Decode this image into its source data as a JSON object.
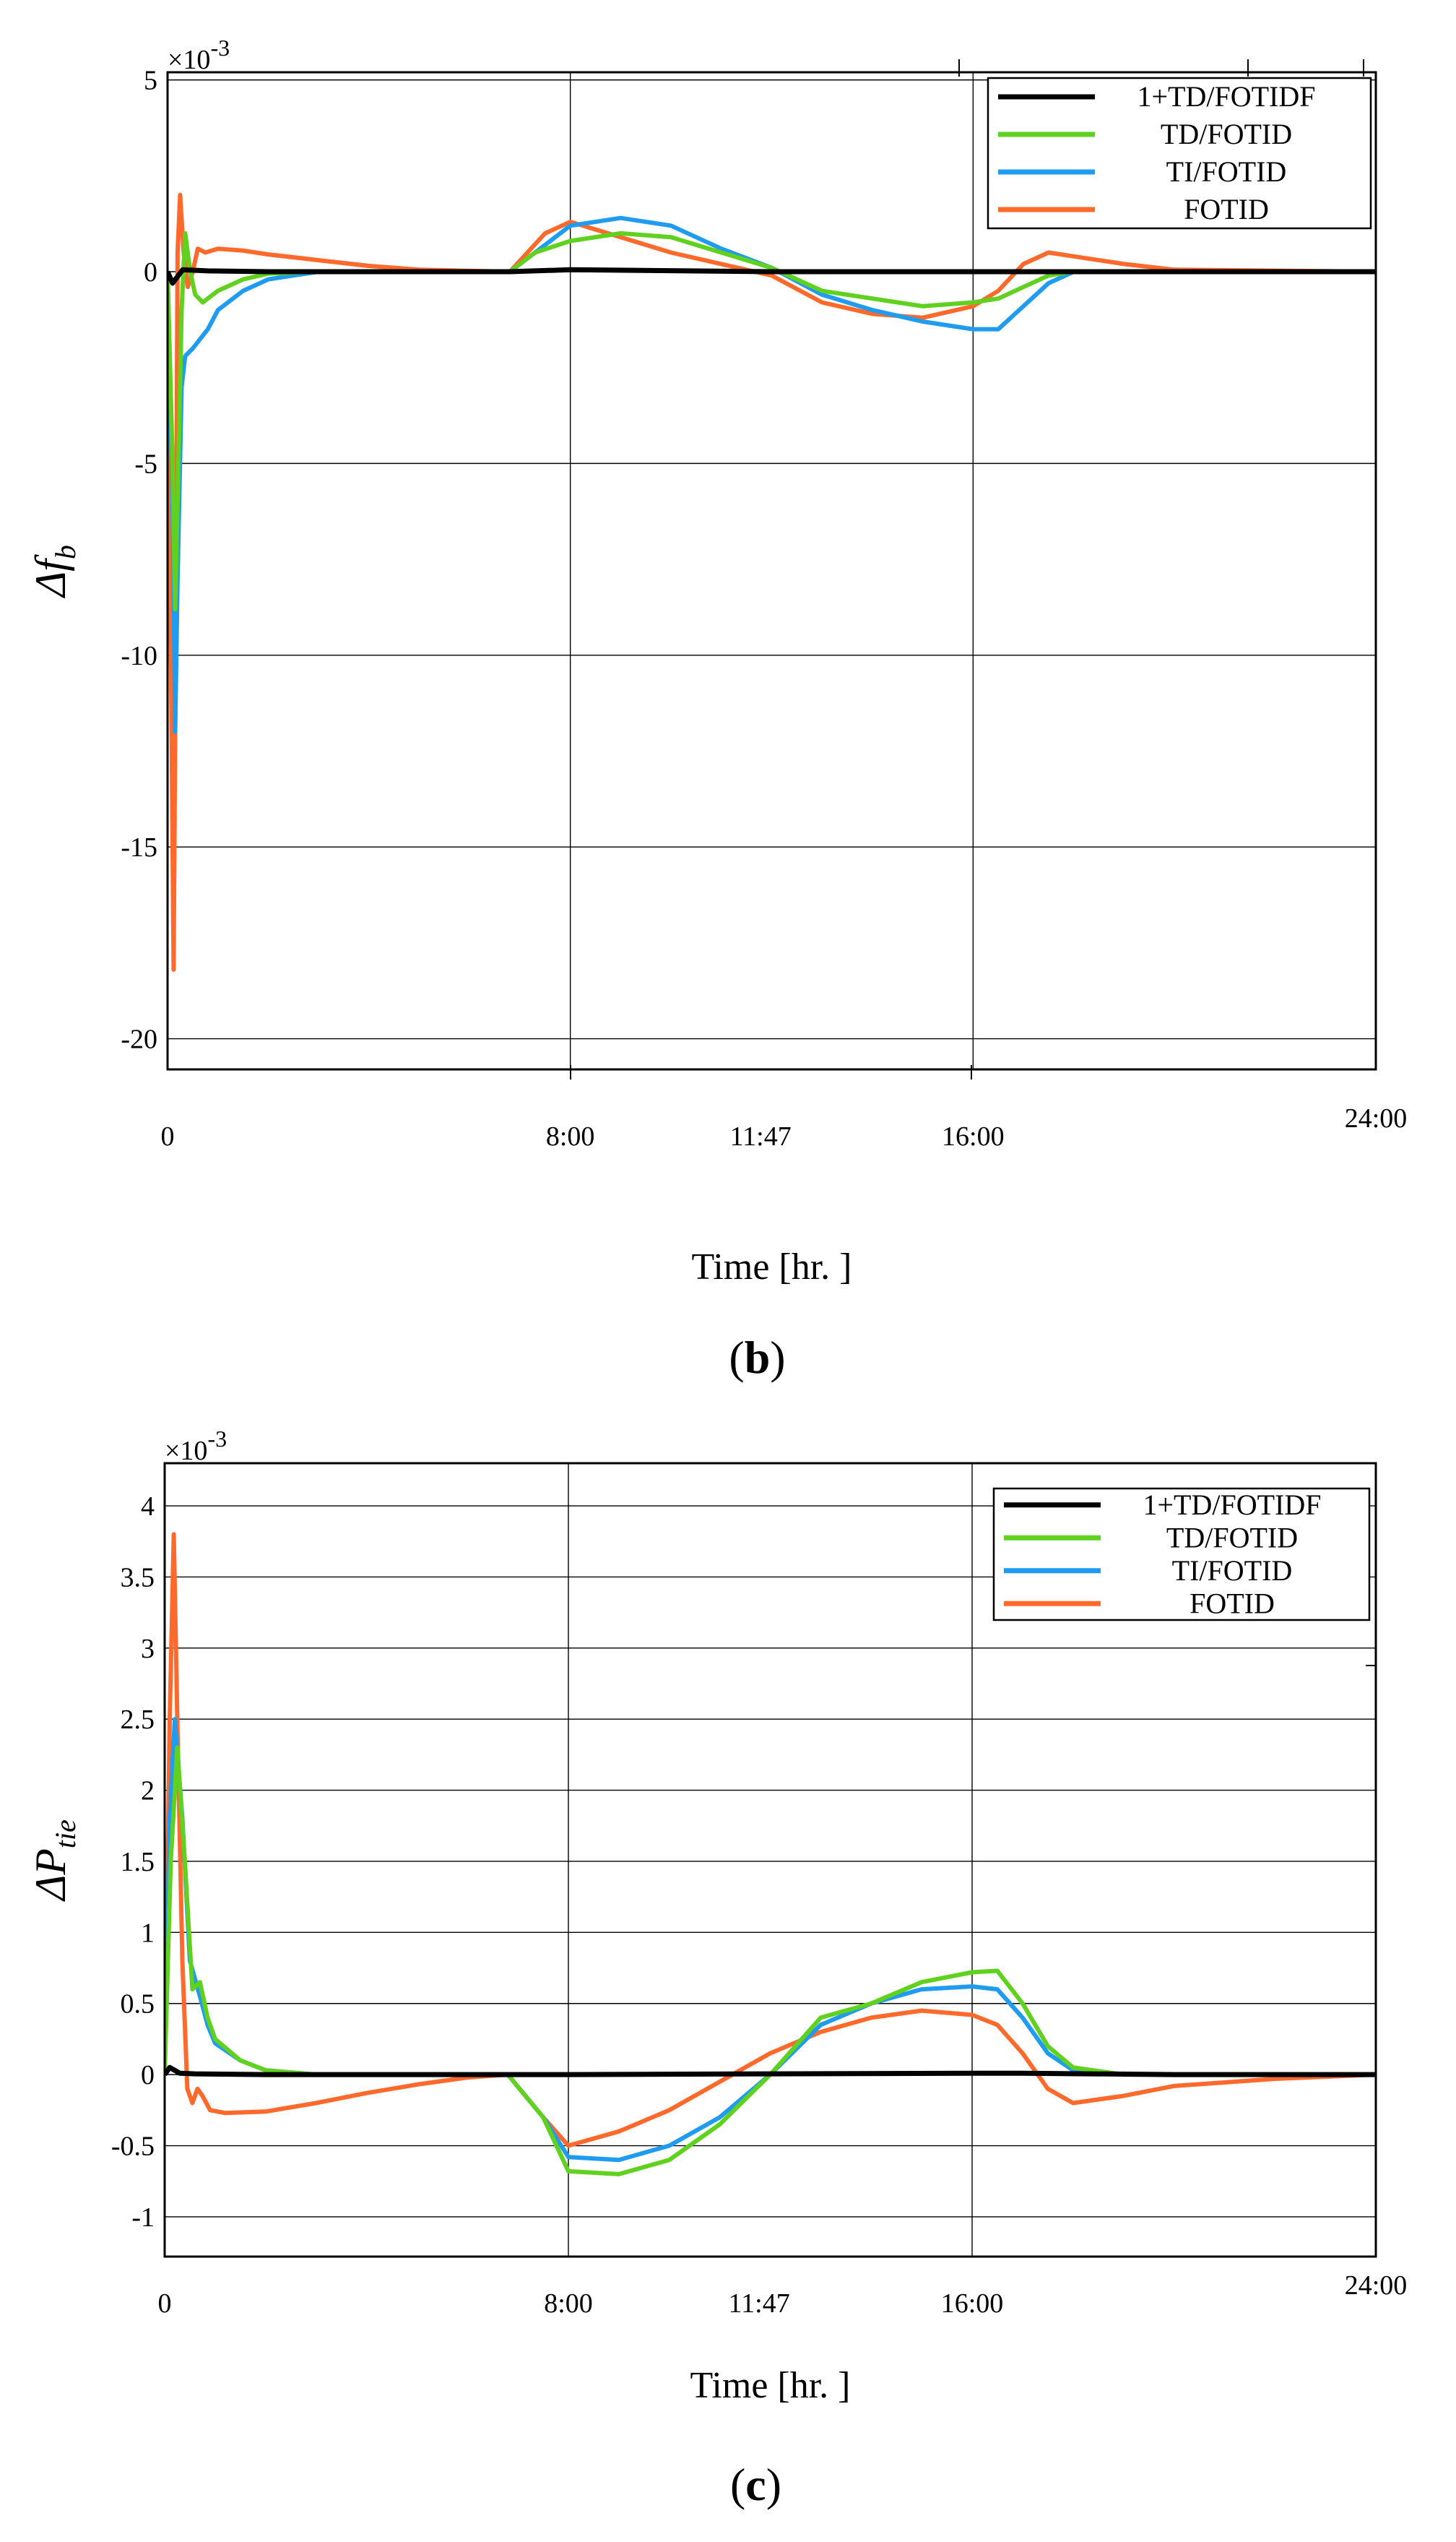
{
  "colors": {
    "1+TD/FOTIDF": "#000000",
    "TD/FOTID": "#5fd11e",
    "TI/FOTID": "#1f9bf0",
    "FOTID": "#ff6a2c"
  },
  "chart_data": [
    {
      "type": "line",
      "panel": "(b)",
      "caption_letter": "b",
      "ylabel_main": "Δf",
      "ylabel_sub": "b",
      "xlabel": "Time [hr. ]",
      "exponent_label": "×10",
      "exponent_power": "-3",
      "xlim": [
        0,
        24
      ],
      "ylim": [
        -20.8,
        5.2
      ],
      "yticks": [
        5,
        0,
        -5,
        -10,
        -15,
        -20
      ],
      "ytick_labels": [
        "5",
        "0",
        "-5",
        "-10",
        "-15",
        "-20"
      ],
      "xticks": [
        0,
        8,
        11.78,
        16,
        24
      ],
      "xtick_labels": [
        "0",
        "8:00",
        "11:47",
        "16:00",
        "24:00"
      ],
      "xgrid": [
        8,
        16
      ],
      "grid": true,
      "legend_position": "top-right",
      "legend": [
        "1+TD/FOTIDF",
        "TD/FOTID",
        "TI/FOTID",
        "FOTID"
      ],
      "series": [
        {
          "name": "1+TD/FOTIDF",
          "x": [
            0,
            0.1,
            0.3,
            0.8,
            2,
            6.8,
            8,
            12,
            16,
            17,
            20,
            24
          ],
          "y": [
            0,
            -0.3,
            0.05,
            0.02,
            0,
            0,
            0.05,
            0,
            0,
            0,
            0,
            0
          ]
        },
        {
          "name": "TD/FOTID",
          "x": [
            0,
            0.1,
            0.15,
            0.2,
            0.28,
            0.35,
            0.45,
            0.55,
            0.7,
            1,
            1.5,
            2,
            3,
            6.8,
            7.3,
            8,
            9,
            10,
            11,
            12,
            13,
            14,
            15,
            16,
            16.5,
            17,
            17.5,
            18,
            19,
            24
          ],
          "y": [
            0,
            -5,
            -8.8,
            -6,
            -1,
            1,
            0,
            -0.6,
            -0.8,
            -0.5,
            -0.2,
            -0.05,
            0,
            0,
            0.5,
            0.8,
            1,
            0.9,
            0.5,
            0.1,
            -0.5,
            -0.7,
            -0.9,
            -0.8,
            -0.7,
            -0.4,
            -0.1,
            0,
            0,
            0
          ]
        },
        {
          "name": "TI/FOTID",
          "x": [
            0,
            0.1,
            0.15,
            0.2,
            0.28,
            0.35,
            0.5,
            0.8,
            1,
            1.5,
            2,
            3,
            6.8,
            7.3,
            8,
            9,
            10,
            11,
            12,
            13,
            14,
            15,
            16,
            16.5,
            17,
            17.5,
            18,
            19,
            24
          ],
          "y": [
            0,
            -6,
            -12,
            -8,
            -3,
            -2.2,
            -2,
            -1.5,
            -1,
            -0.5,
            -0.2,
            0,
            0,
            0.5,
            1.2,
            1.4,
            1.2,
            0.6,
            0.1,
            -0.6,
            -1,
            -1.3,
            -1.5,
            -1.5,
            -0.9,
            -0.3,
            0,
            0,
            0
          ]
        },
        {
          "name": "FOTID",
          "x": [
            0,
            0.08,
            0.12,
            0.16,
            0.2,
            0.25,
            0.32,
            0.4,
            0.5,
            0.6,
            0.75,
            1,
            1.5,
            2,
            3,
            4,
            5,
            6.8,
            7.5,
            8,
            9,
            10,
            11,
            12,
            13,
            14,
            15,
            16,
            16.5,
            17,
            17.5,
            18,
            19,
            20,
            24
          ],
          "y": [
            0,
            -12,
            -18.2,
            -10,
            0.5,
            2,
            0.5,
            -0.4,
            0,
            0.6,
            0.5,
            0.6,
            0.55,
            0.45,
            0.3,
            0.15,
            0.05,
            0,
            1,
            1.3,
            0.9,
            0.5,
            0.2,
            -0.1,
            -0.8,
            -1.1,
            -1.2,
            -0.9,
            -0.5,
            0.2,
            0.5,
            0.4,
            0.2,
            0.05,
            0
          ]
        }
      ]
    },
    {
      "type": "line",
      "panel": "(c)",
      "caption_letter": "c",
      "ylabel_main": "ΔP",
      "ylabel_sub": "tie",
      "xlabel": "Time [hr. ]",
      "exponent_label": "×10",
      "exponent_power": "-3",
      "xlim": [
        0,
        24
      ],
      "ylim": [
        -1.28,
        4.3
      ],
      "yticks": [
        4,
        3.5,
        3,
        2.5,
        2,
        1.5,
        1,
        0.5,
        0,
        -0.5,
        -1
      ],
      "ytick_labels": [
        "4",
        "3.5",
        "3",
        "2.5",
        "2",
        "1.5",
        "1",
        "0.5",
        "0",
        "-0.5",
        "-1"
      ],
      "xticks": [
        0,
        8,
        11.78,
        16,
        24
      ],
      "xtick_labels": [
        "0",
        "8:00",
        "11:47",
        "16:00",
        "24:00"
      ],
      "xgrid": [
        8,
        16
      ],
      "grid": true,
      "legend_position": "top-right",
      "legend": [
        "1+TD/FOTIDF",
        "TD/FOTID",
        "TI/FOTID",
        "FOTID"
      ],
      "series": [
        {
          "name": "1+TD/FOTIDF",
          "x": [
            0,
            0.1,
            0.3,
            0.6,
            2,
            6.8,
            8,
            12,
            16,
            17,
            20,
            24
          ],
          "y": [
            0,
            0.05,
            0.01,
            0.005,
            0,
            0,
            0,
            0.005,
            0.01,
            0.01,
            0,
            0
          ]
        },
        {
          "name": "TD/FOTID",
          "x": [
            0,
            0.12,
            0.25,
            0.4,
            0.55,
            0.7,
            0.85,
            1,
            1.5,
            2,
            3,
            4,
            6.8,
            7.5,
            8,
            9,
            10,
            11,
            12,
            13,
            14,
            15,
            16,
            16.5,
            17,
            17.5,
            18,
            19,
            24
          ],
          "y": [
            0,
            1.5,
            2.3,
            1.5,
            0.6,
            0.65,
            0.4,
            0.25,
            0.1,
            0.03,
            0,
            0,
            0,
            -0.3,
            -0.68,
            -0.7,
            -0.6,
            -0.35,
            0,
            0.4,
            0.5,
            0.65,
            0.72,
            0.73,
            0.5,
            0.2,
            0.05,
            0,
            0
          ]
        },
        {
          "name": "TI/FOTID",
          "x": [
            0,
            0.1,
            0.2,
            0.35,
            0.5,
            0.7,
            0.85,
            1,
            1.5,
            2,
            3,
            4,
            6.8,
            7.5,
            8,
            9,
            10,
            11,
            12,
            13,
            14,
            15,
            16,
            16.5,
            17,
            17.5,
            18,
            19,
            24
          ],
          "y": [
            0,
            1.8,
            2.5,
            1.8,
            0.8,
            0.55,
            0.35,
            0.22,
            0.1,
            0.03,
            0,
            0,
            0,
            -0.3,
            -0.58,
            -0.6,
            -0.5,
            -0.3,
            0,
            0.35,
            0.5,
            0.6,
            0.62,
            0.6,
            0.4,
            0.15,
            0.03,
            0,
            0
          ]
        },
        {
          "name": "FOTID",
          "x": [
            0,
            0.1,
            0.18,
            0.25,
            0.35,
            0.45,
            0.55,
            0.65,
            0.75,
            0.9,
            1.2,
            2,
            3,
            4,
            5,
            6,
            6.8,
            7.5,
            8,
            9,
            10,
            11,
            12,
            13,
            14,
            15,
            16,
            16.5,
            17,
            17.5,
            18,
            19,
            20,
            22,
            24
          ],
          "y": [
            0,
            2.5,
            3.8,
            2.5,
            0.8,
            -0.1,
            -0.2,
            -0.1,
            -0.15,
            -0.25,
            -0.27,
            -0.26,
            -0.2,
            -0.13,
            -0.07,
            -0.02,
            0,
            -0.3,
            -0.5,
            -0.4,
            -0.25,
            -0.05,
            0.15,
            0.3,
            0.4,
            0.45,
            0.42,
            0.35,
            0.15,
            -0.1,
            -0.2,
            -0.15,
            -0.08,
            -0.03,
            0
          ]
        }
      ]
    }
  ]
}
